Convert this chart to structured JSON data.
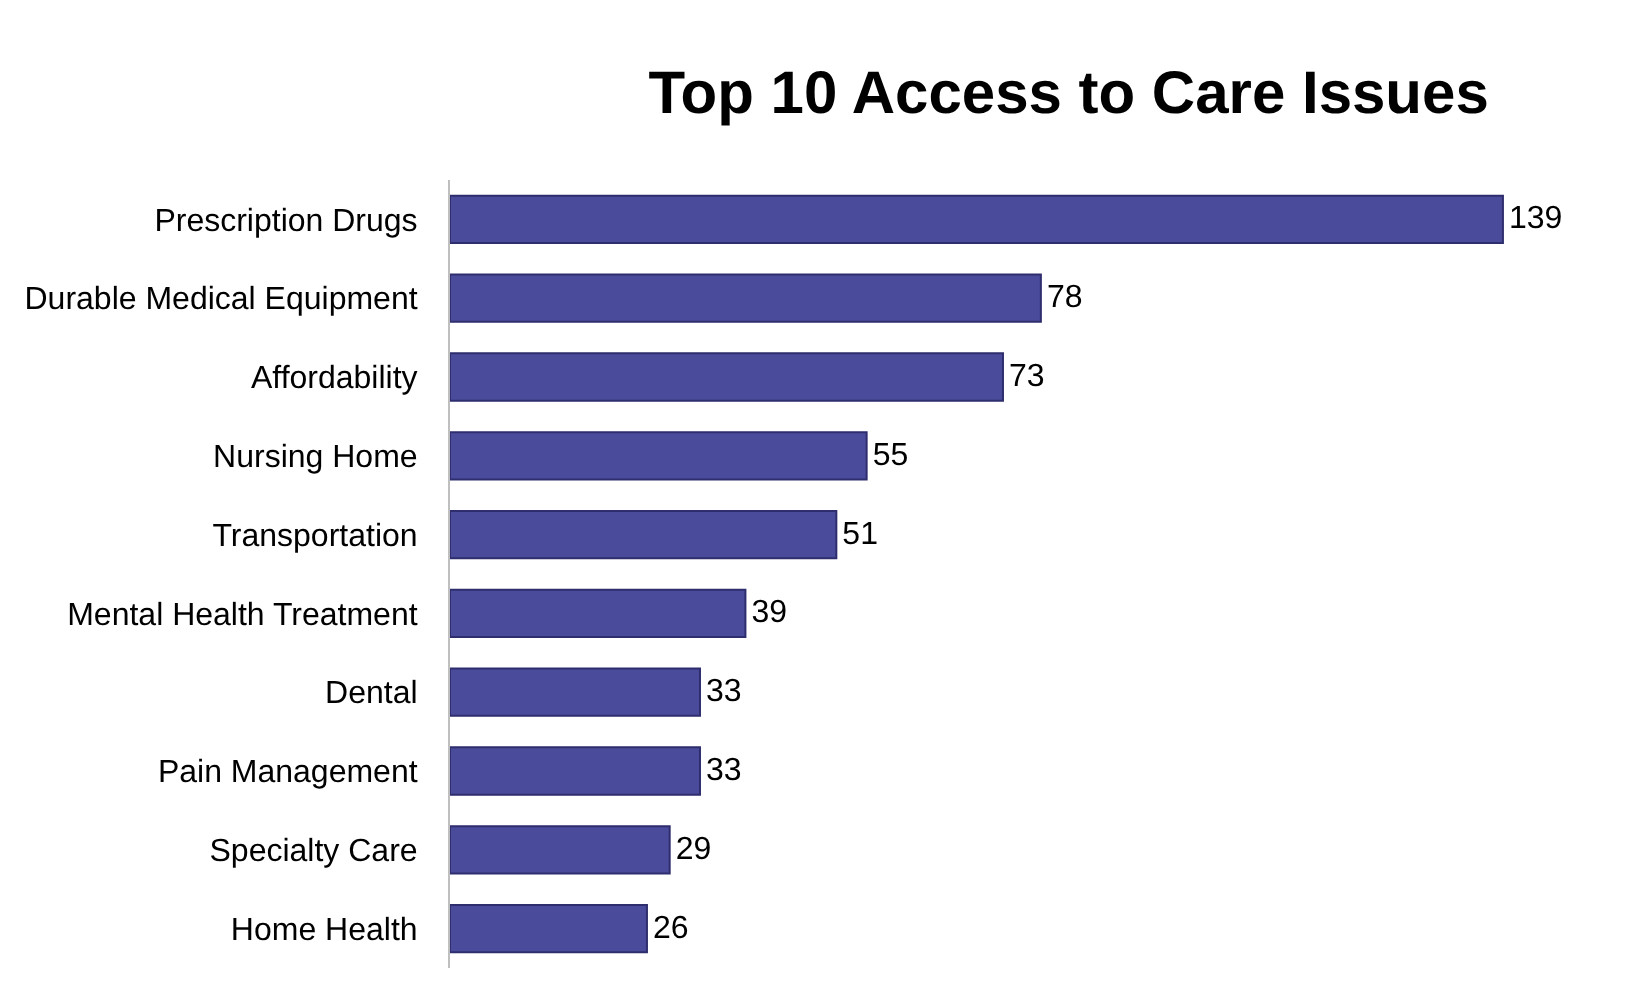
{
  "chart_data": {
    "type": "bar",
    "orientation": "horizontal",
    "title": "Top 10 Access to Care Issues",
    "categories": [
      "Prescription Drugs",
      "Durable Medical Equipment",
      "Affordability",
      "Nursing Home",
      "Transportation",
      "Mental Health Treatment",
      "Dental",
      "Pain Management",
      "Specialty Care",
      "Home Health"
    ],
    "values": [
      139,
      78,
      73,
      55,
      51,
      39,
      33,
      33,
      29,
      26
    ],
    "color": "#4b4b9b",
    "data_labels": true
  }
}
